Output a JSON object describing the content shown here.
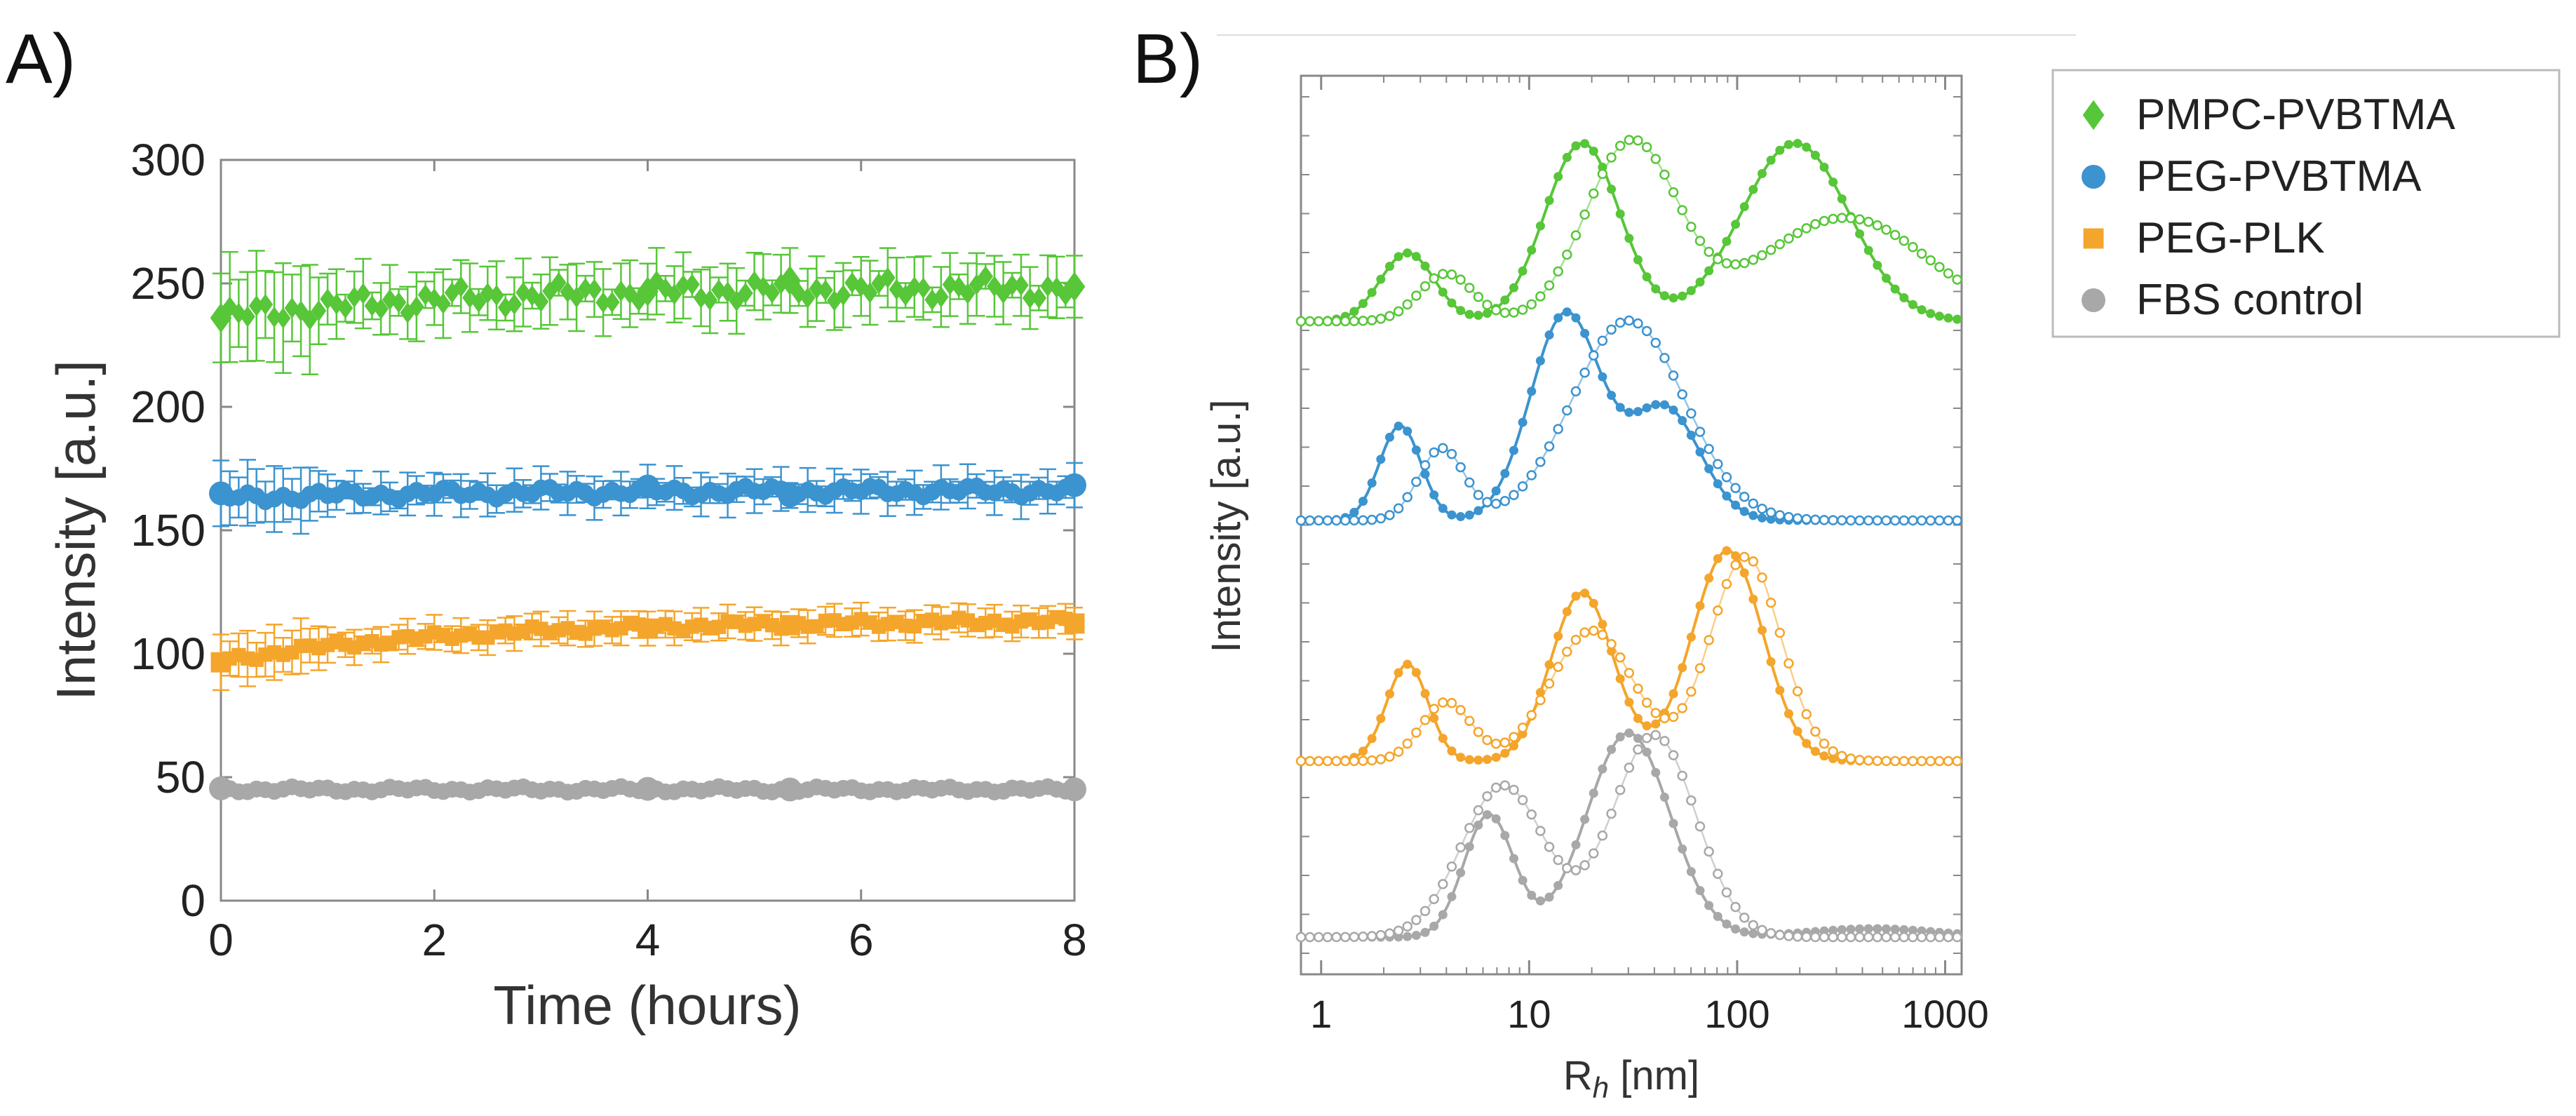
{
  "colors": {
    "PMPC-PVBTMA": "#57c638",
    "PEG-PVBTMA": "#3b93cf",
    "PEG-PLK": "#f4a52b",
    "FBS control": "#a8a8a8"
  },
  "chart_data": [
    {
      "type": "scatter",
      "panel": "A)",
      "xlabel": "Time (hours)",
      "ylabel": "Intensity [a.u.]",
      "xlim": [
        0,
        8
      ],
      "ylim": [
        0,
        300
      ],
      "xticks": [
        "0",
        "2",
        "4",
        "6",
        "8"
      ],
      "yticks": [
        "0",
        "50",
        "100",
        "150",
        "200",
        "250",
        "300"
      ],
      "error_bars": true,
      "series": [
        {
          "name": "PMPC-PVBTMA",
          "marker": "diamond",
          "start": 236,
          "end": 248,
          "noise": 5,
          "error": 10
        },
        {
          "name": "PEG-PVBTMA",
          "marker": "circle",
          "start": 163,
          "end": 166,
          "noise": 2.5,
          "error": 6
        },
        {
          "name": "PEG-PLK",
          "marker": "square",
          "start": 97,
          "end": 113,
          "noise": 2,
          "error": 5
        },
        {
          "name": "FBS control",
          "marker": "circle",
          "start": 45,
          "end": 45,
          "noise": 1.2,
          "error": 0
        }
      ]
    },
    {
      "type": "line",
      "panel": "B)",
      "xlabel_main": "R",
      "xlabel_sub": "h",
      "xlabel_unit": " [nm]",
      "ylabel": "Intensity [a.u.]",
      "xscale": "log",
      "xlim": [
        0.8,
        1200
      ],
      "xticks": [
        "1",
        "10",
        "100",
        "1000"
      ],
      "note": "Stacked size distributions; filled = one condition, open = second condition",
      "series": [
        {
          "name": "PMPC-PVBTMA",
          "kind": "filled",
          "peaks": [
            {
              "rh": 2.6,
              "amp": 0.33,
              "w": 0.13
            },
            {
              "rh": 18,
              "amp": 0.86,
              "w": 0.18
            },
            {
              "rh": 190,
              "amp": 0.86,
              "w": 0.26
            }
          ]
        },
        {
          "name": "PMPC-PVBTMA",
          "kind": "open",
          "peaks": [
            {
              "rh": 4.0,
              "amp": 0.23,
              "w": 0.13
            },
            {
              "rh": 31,
              "amp": 0.86,
              "w": 0.22
            },
            {
              "rh": 330,
              "amp": 0.5,
              "w": 0.4
            }
          ]
        },
        {
          "name": "PEG-PVBTMA",
          "kind": "filled",
          "peaks": [
            {
              "rh": 2.4,
              "amp": 0.45,
              "w": 0.1
            },
            {
              "rh": 15,
              "amp": 0.98,
              "w": 0.17
            },
            {
              "rh": 45,
              "amp": 0.53,
              "w": 0.17
            }
          ]
        },
        {
          "name": "PEG-PVBTMA",
          "kind": "open",
          "peaks": [
            {
              "rh": 3.8,
              "amp": 0.34,
              "w": 0.11
            },
            {
              "rh": 30,
              "amp": 0.95,
              "w": 0.27
            }
          ]
        },
        {
          "name": "PEG-PLK",
          "kind": "filled",
          "peaks": [
            {
              "rh": 2.6,
              "amp": 0.46,
              "w": 0.1
            },
            {
              "rh": 18,
              "amp": 0.8,
              "w": 0.15
            },
            {
              "rh": 90,
              "amp": 1.0,
              "w": 0.17
            }
          ]
        },
        {
          "name": "PEG-PLK",
          "kind": "open",
          "peaks": [
            {
              "rh": 4.0,
              "amp": 0.28,
              "w": 0.12
            },
            {
              "rh": 20,
              "amp": 0.62,
              "w": 0.2
            },
            {
              "rh": 110,
              "amp": 0.97,
              "w": 0.17
            }
          ]
        },
        {
          "name": "FBS control",
          "kind": "filled",
          "peaks": [
            {
              "rh": 6.4,
              "amp": 0.58,
              "w": 0.12
            },
            {
              "rh": 30,
              "amp": 0.97,
              "w": 0.2
            },
            {
              "rh": 450,
              "amp": 0.04,
              "w": 0.3
            }
          ]
        },
        {
          "name": "FBS control",
          "kind": "open",
          "peaks": [
            {
              "rh": 7.5,
              "amp": 0.72,
              "w": 0.2
            },
            {
              "rh": 40,
              "amp": 0.96,
              "w": 0.2
            }
          ]
        }
      ]
    }
  ],
  "legend": {
    "entries": [
      {
        "label": "PMPC-PVBTMA",
        "marker": "diamond"
      },
      {
        "label": "PEG-PVBTMA",
        "marker": "circle"
      },
      {
        "label": "PEG-PLK",
        "marker": "square"
      },
      {
        "label": "FBS control",
        "marker": "circle"
      }
    ]
  }
}
